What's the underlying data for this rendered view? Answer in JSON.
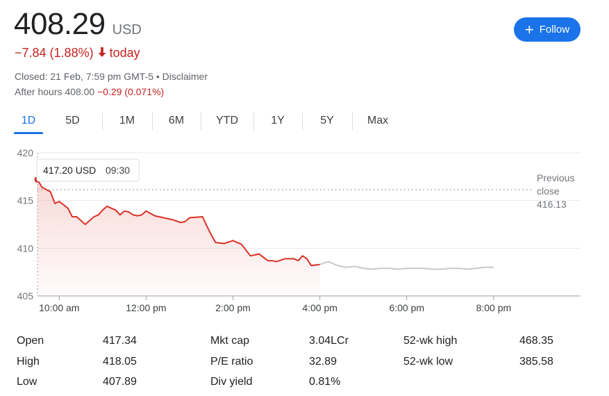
{
  "header": {
    "price": "408.29",
    "currency": "USD",
    "change": "−7.84 (1.88%)",
    "change_suffix": "today",
    "follow_label": "Follow",
    "closed_text": "Closed: 21 Feb, 7:59 pm GMT-5 • Disclaimer",
    "after_hours_label": "After hours 408.00",
    "after_hours_change": "−0.29 (0.071%)",
    "colors": {
      "negative": "#c5221f",
      "accent": "#1a73e8",
      "line_after_hours": "#c8c8c8"
    }
  },
  "tabs": [
    {
      "label": "1D",
      "active": true
    },
    {
      "label": "5D",
      "active": false
    },
    {
      "label": "1M",
      "active": false
    },
    {
      "label": "6M",
      "active": false
    },
    {
      "label": "YTD",
      "active": false
    },
    {
      "label": "1Y",
      "active": false
    },
    {
      "label": "5Y",
      "active": false
    },
    {
      "label": "Max",
      "active": false
    }
  ],
  "chart_data": {
    "type": "line",
    "title": "",
    "xlabel": "",
    "ylabel": "",
    "ylim": [
      405,
      420
    ],
    "y_ticks": [
      "420",
      "415",
      "410",
      "405"
    ],
    "y_tick_values": [
      420,
      415,
      410,
      405
    ],
    "x_ticks": [
      "10:00 am",
      "12:00 pm",
      "2:00 pm",
      "4:00 pm",
      "6:00 pm",
      "8:00 pm"
    ],
    "x_tick_hours": [
      10,
      12,
      14,
      16,
      18,
      20
    ],
    "xlim_hours": [
      9.5,
      22.0
    ],
    "grid": true,
    "previous_close": {
      "label_line1": "Previous",
      "label_line2": "close",
      "value_label": "416.13",
      "value": 416.13
    },
    "tooltip": {
      "price": "417.20 USD",
      "time": "09:30"
    },
    "series": [
      {
        "x": [
          9.5,
          9.6,
          9.8,
          9.9,
          10.0,
          10.2,
          10.3,
          10.4,
          10.6,
          10.8,
          10.9,
          11.0,
          11.1,
          11.3,
          11.4,
          11.5,
          11.6,
          11.7,
          11.8,
          11.9,
          12.0,
          12.2,
          12.4,
          12.5,
          12.6,
          12.8,
          12.9,
          13.0,
          13.3,
          13.4,
          13.5,
          13.6,
          13.8,
          14.0,
          14.2,
          14.4,
          14.6,
          14.8,
          14.9,
          15.0,
          15.2,
          15.4,
          15.5,
          15.6,
          15.7,
          15.8,
          16.0
        ],
        "y": [
          417.2,
          416.4,
          415.9,
          414.7,
          414.9,
          414.2,
          413.3,
          413.3,
          412.5,
          413.3,
          413.5,
          414.0,
          414.4,
          414.0,
          413.5,
          413.9,
          413.8,
          413.5,
          413.4,
          413.5,
          413.9,
          413.4,
          413.2,
          413.1,
          413.0,
          412.7,
          412.8,
          413.2,
          413.3,
          412.3,
          411.4,
          410.6,
          410.5,
          410.8,
          410.4,
          409.2,
          409.4,
          408.7,
          408.7,
          408.6,
          408.9,
          408.9,
          408.7,
          409.2,
          408.9,
          408.2,
          408.3
        ]
      },
      {
        "x": [
          16.0,
          16.2,
          16.4,
          16.6,
          16.8,
          17.0,
          17.2,
          17.4,
          17.6,
          17.8,
          18.0,
          18.2,
          18.4,
          18.6,
          18.8,
          19.0,
          19.2,
          19.4,
          19.6,
          19.8,
          20.0
        ],
        "y": [
          408.3,
          408.6,
          408.2,
          408.0,
          408.1,
          407.9,
          407.8,
          407.9,
          407.9,
          407.8,
          407.9,
          407.9,
          407.9,
          407.8,
          407.8,
          407.9,
          407.9,
          407.8,
          407.9,
          408.0,
          408.0
        ]
      }
    ]
  },
  "stats": [
    {
      "label": "Open",
      "value": "417.34"
    },
    {
      "label": "High",
      "value": "418.05"
    },
    {
      "label": "Low",
      "value": "407.89"
    },
    {
      "label": "Mkt cap",
      "value": "3.04LCr"
    },
    {
      "label": "P/E ratio",
      "value": "32.89"
    },
    {
      "label": "Div yield",
      "value": "0.81%"
    },
    {
      "label": "52-wk high",
      "value": "468.35"
    },
    {
      "label": "52-wk low",
      "value": "385.58"
    }
  ]
}
